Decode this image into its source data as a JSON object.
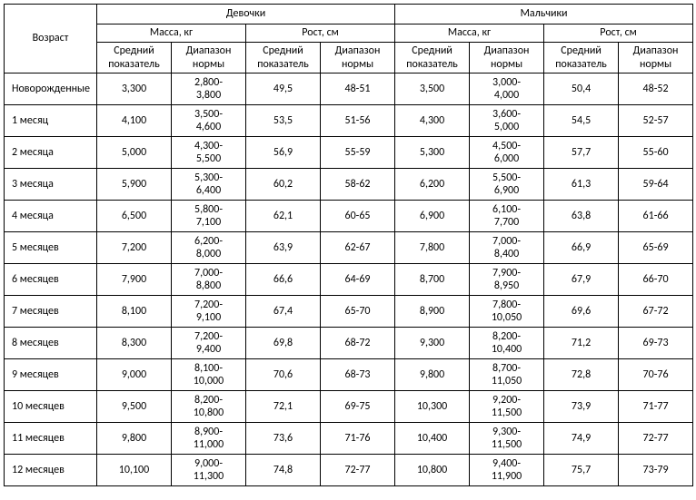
{
  "headers": {
    "age": "Возраст",
    "girls": "Девочки",
    "boys": "Мальчики",
    "mass": "Масса, кг",
    "height": "Рост, см",
    "avg": "Средний показатель",
    "range": "Диапазон нормы"
  },
  "rows": [
    {
      "age": "Новорожденные",
      "g_m_avg": "3,300",
      "g_m_rng": "2,800-3,800",
      "g_h_avg": "49,5",
      "g_h_rng": "48-51",
      "b_m_avg": "3,500",
      "b_m_rng": "3,000-4,000",
      "b_h_avg": "50,4",
      "b_h_rng": "48-52"
    },
    {
      "age": "1 месяц",
      "g_m_avg": "4,100",
      "g_m_rng": "3,500-4,600",
      "g_h_avg": "53,5",
      "g_h_rng": "51-56",
      "b_m_avg": "4,300",
      "b_m_rng": "3,600-5,000",
      "b_h_avg": "54,5",
      "b_h_rng": "52-57"
    },
    {
      "age": "2 месяца",
      "g_m_avg": "5,000",
      "g_m_rng": "4,300-5,500",
      "g_h_avg": "56,9",
      "g_h_rng": "55-59",
      "b_m_avg": "5,300",
      "b_m_rng": "4,500-6,000",
      "b_h_avg": "57,7",
      "b_h_rng": "55-60"
    },
    {
      "age": "3 месяца",
      "g_m_avg": "5,900",
      "g_m_rng": "5,300-6,400",
      "g_h_avg": "60,2",
      "g_h_rng": "58-62",
      "b_m_avg": "6,200",
      "b_m_rng": "5,500-6,900",
      "b_h_avg": "61,3",
      "b_h_rng": "59-64"
    },
    {
      "age": "4 месяца",
      "g_m_avg": "6,500",
      "g_m_rng": "5,800-7,100",
      "g_h_avg": "62,1",
      "g_h_rng": "60-65",
      "b_m_avg": "6,900",
      "b_m_rng": "6,100-7,700",
      "b_h_avg": "63,8",
      "b_h_rng": "61-66"
    },
    {
      "age": "5 месяцев",
      "g_m_avg": "7,200",
      "g_m_rng": "6,200-8,000",
      "g_h_avg": "63,9",
      "g_h_rng": "62-67",
      "b_m_avg": "7,800",
      "b_m_rng": "7,000-8,400",
      "b_h_avg": "66,9",
      "b_h_rng": "65-69"
    },
    {
      "age": "6 месяцев",
      "g_m_avg": "7,900",
      "g_m_rng": "7,000-8,800",
      "g_h_avg": "66,6",
      "g_h_rng": "64-69",
      "b_m_avg": "8,700",
      "b_m_rng": "7,900-8,950",
      "b_h_avg": "67,9",
      "b_h_rng": "66-70"
    },
    {
      "age": "7 месяцев",
      "g_m_avg": "8,100",
      "g_m_rng": "7,200-9,100",
      "g_h_avg": "67,4",
      "g_h_rng": "65-70",
      "b_m_avg": "8,900",
      "b_m_rng": "7,800-10,050",
      "b_h_avg": "69,6",
      "b_h_rng": "67-72"
    },
    {
      "age": "8 месяцев",
      "g_m_avg": "8,300",
      "g_m_rng": "7,200-9,400",
      "g_h_avg": "69,8",
      "g_h_rng": "68-72",
      "b_m_avg": "9,300",
      "b_m_rng": "8,200-10,400",
      "b_h_avg": "71,2",
      "b_h_rng": "69-73"
    },
    {
      "age": "9 месяцев",
      "g_m_avg": "9,000",
      "g_m_rng": "8,100-10,000",
      "g_h_avg": "70,6",
      "g_h_rng": "68-73",
      "b_m_avg": "9,800",
      "b_m_rng": "8,700-11,050",
      "b_h_avg": "72,8",
      "b_h_rng": "70-76"
    },
    {
      "age": "10 месяцев",
      "g_m_avg": "9,500",
      "g_m_rng": "8,200-10,800",
      "g_h_avg": "72,1",
      "g_h_rng": "69-75",
      "b_m_avg": "10,300",
      "b_m_rng": "9,200-11,500",
      "b_h_avg": "73,9",
      "b_h_rng": "71-77"
    },
    {
      "age": "11 месяцев",
      "g_m_avg": "9,800",
      "g_m_rng": "8,900-11,000",
      "g_h_avg": "73,6",
      "g_h_rng": "71-76",
      "b_m_avg": "10,400",
      "b_m_rng": "9,300-11,500",
      "b_h_avg": "74,9",
      "b_h_rng": "72-77"
    },
    {
      "age": "12 месяцев",
      "g_m_avg": "10,100",
      "g_m_rng": "9,000-11,300",
      "g_h_avg": "74,8",
      "g_h_rng": "72-77",
      "b_m_avg": "10,800",
      "b_m_rng": "9,400-11,900",
      "b_h_avg": "75,7",
      "b_h_rng": "73-79"
    }
  ]
}
